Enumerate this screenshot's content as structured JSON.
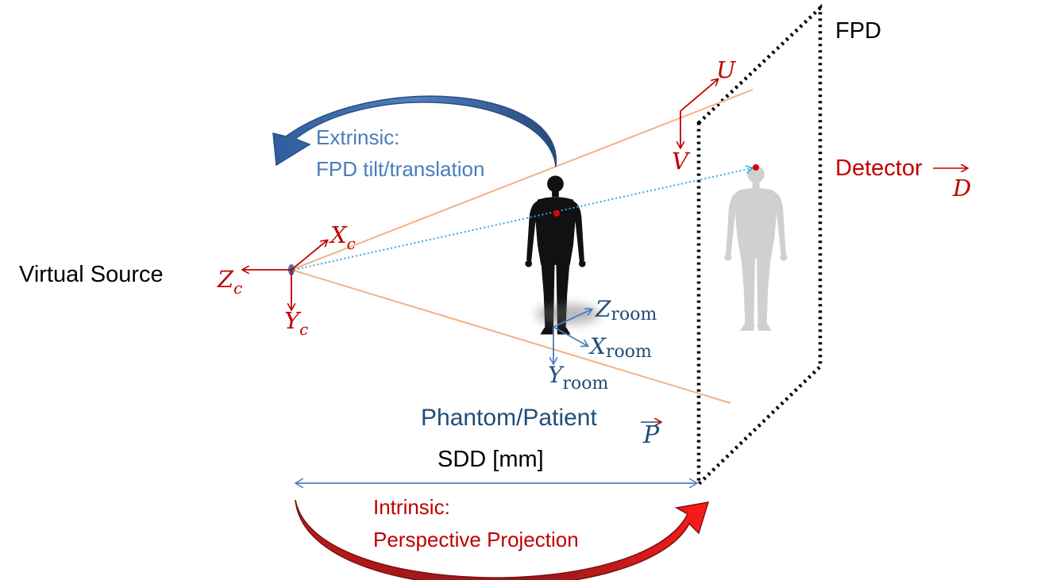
{
  "labels": {
    "fpd": "FPD",
    "virtual_source": "Virtual Source",
    "extrinsic_line1": "Extrinsic:",
    "extrinsic_line2": "FPD tilt/translation",
    "intrinsic_line1": "Intrinsic:",
    "intrinsic_line2": "Perspective Projection",
    "detector": "Detector",
    "detector_sub": "D",
    "phantom": "Phantom/Patient",
    "phantom_sub": "P",
    "sdd": "SDD [mm]"
  },
  "axes": {
    "camera_x": "X",
    "camera_y": "Y",
    "camera_z": "Z",
    "camera_sub": "c",
    "room_x": "X",
    "room_y": "Y",
    "room_z": "Z",
    "room_sub": "room",
    "detector_u": "U",
    "detector_v": "V"
  },
  "colors": {
    "red": "#c00000",
    "dark_blue": "#1f4e79",
    "light_blue": "#4a7dbd",
    "ray_orange": "#f4b183",
    "center_ray": "#2ea8e0",
    "silhouette": "#111111",
    "ghost": "#d0d0d0"
  }
}
